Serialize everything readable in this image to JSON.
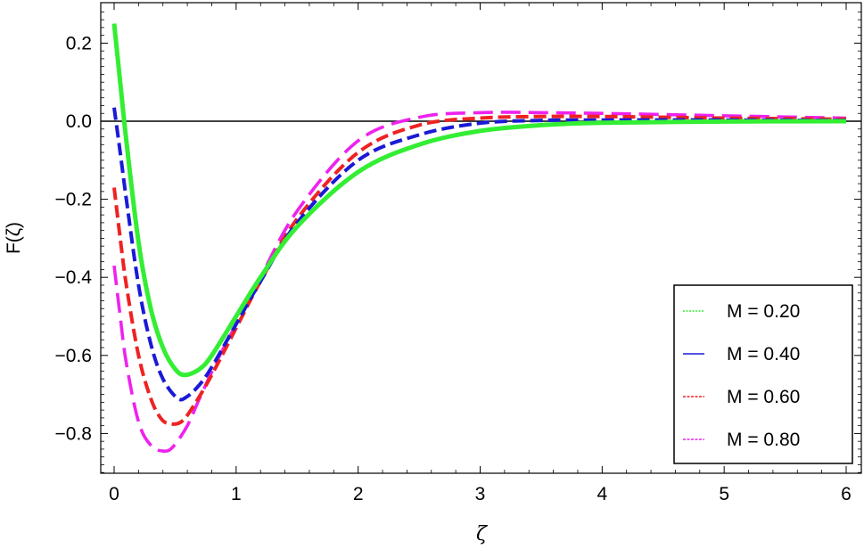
{
  "chart_data": {
    "type": "line",
    "title": "",
    "xlabel": "ζ",
    "ylabel": "F(ζ)",
    "xlim": [
      0,
      6
    ],
    "ylim": [
      -0.9,
      0.3
    ],
    "x_ticks": [
      "0",
      "1",
      "2",
      "3",
      "4",
      "5",
      "6"
    ],
    "y_ticks": [
      "0.2",
      "0.0",
      "−0.2",
      "−0.4",
      "−0.6",
      "−0.8"
    ],
    "legend_position": "bottom-right",
    "series": [
      {
        "name": "M = 0.20",
        "color": "#33ee33",
        "style": "solid",
        "x": [
          0,
          0.05,
          0.1,
          0.2,
          0.3,
          0.4,
          0.5,
          0.58,
          0.7,
          0.8,
          1.0,
          1.2,
          1.5,
          2.0,
          2.5,
          3.0,
          3.5,
          4.0,
          5.0,
          6.0
        ],
        "y": [
          0.25,
          0.1,
          -0.05,
          -0.31,
          -0.48,
          -0.58,
          -0.635,
          -0.65,
          -0.635,
          -0.6,
          -0.5,
          -0.4,
          -0.27,
          -0.13,
          -0.06,
          -0.025,
          -0.01,
          -0.004,
          -0.001,
          0.0
        ]
      },
      {
        "name": "M = 0.40",
        "color": "#1a1ad6",
        "style": "dash",
        "x": [
          0,
          0.05,
          0.1,
          0.2,
          0.3,
          0.4,
          0.52,
          0.6,
          0.7,
          0.8,
          1.0,
          1.2,
          1.5,
          2.0,
          2.5,
          3.0,
          3.5,
          4.0,
          5.0,
          6.0
        ],
        "y": [
          0.035,
          -0.08,
          -0.2,
          -0.42,
          -0.57,
          -0.66,
          -0.71,
          -0.705,
          -0.675,
          -0.63,
          -0.52,
          -0.41,
          -0.26,
          -0.1,
          -0.035,
          -0.005,
          0.002,
          0.003,
          0.003,
          0.002
        ]
      },
      {
        "name": "M = 0.60",
        "color": "#ee2222",
        "style": "dash",
        "x": [
          0,
          0.05,
          0.1,
          0.2,
          0.3,
          0.38,
          0.45,
          0.55,
          0.65,
          0.8,
          1.0,
          1.2,
          1.5,
          2.0,
          2.5,
          3.0,
          3.5,
          4.0,
          5.0,
          6.0
        ],
        "y": [
          -0.17,
          -0.3,
          -0.42,
          -0.6,
          -0.71,
          -0.76,
          -0.775,
          -0.77,
          -0.73,
          -0.65,
          -0.53,
          -0.41,
          -0.25,
          -0.08,
          -0.01,
          0.008,
          0.012,
          0.012,
          0.008,
          0.005
        ]
      },
      {
        "name": "M = 0.80",
        "color": "#ee22ee",
        "style": "longdash",
        "x": [
          0,
          0.05,
          0.1,
          0.2,
          0.3,
          0.4,
          0.48,
          0.6,
          0.7,
          0.85,
          1.0,
          1.2,
          1.5,
          2.0,
          2.5,
          3.0,
          3.5,
          4.0,
          5.0,
          6.0
        ],
        "y": [
          -0.37,
          -0.5,
          -0.62,
          -0.77,
          -0.83,
          -0.845,
          -0.835,
          -0.78,
          -0.71,
          -0.61,
          -0.52,
          -0.4,
          -0.23,
          -0.05,
          0.01,
          0.022,
          0.022,
          0.02,
          0.014,
          0.008
        ]
      }
    ]
  }
}
